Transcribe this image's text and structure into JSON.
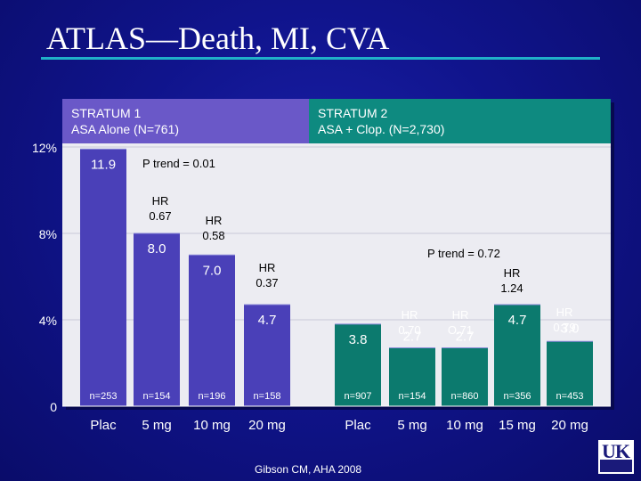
{
  "title": "ATLAS—Death, MI, CVA",
  "footer": "Gibson CM, AHA 2008",
  "logo": {
    "text": "UK"
  },
  "colors": {
    "stratum1_bar": "#4a40b8",
    "stratum2_bar": "#0c7a6e",
    "stratum1_header": "#6a58c8",
    "stratum2_header": "#0e8a80",
    "plot_bg": "#ececf2",
    "accent": "#20b0c8"
  },
  "chart_data": {
    "type": "bar",
    "title": "ATLAS—Death, MI, CVA",
    "ylim": [
      0,
      12
    ],
    "yticks": [
      {
        "value": 0,
        "label": "0"
      },
      {
        "value": 4,
        "label": "4%"
      },
      {
        "value": 8,
        "label": "8%"
      },
      {
        "value": 12,
        "label": "12%"
      }
    ],
    "grid": false,
    "groups": [
      {
        "name": "STRATUM 1",
        "subtitle": "ASA Alone (N=761)",
        "trend": "P trend = 0.01",
        "bars": [
          {
            "category": "Plac",
            "value": 11.9,
            "label": "11.9",
            "n": "n=253"
          },
          {
            "category": "5 mg",
            "value": 8.0,
            "label": "8.0",
            "n": "n=154",
            "hr": [
              "HR",
              "0.67"
            ]
          },
          {
            "category": "10 mg",
            "value": 7.0,
            "label": "7.0",
            "n": "n=196",
            "hr": [
              "HR",
              "0.58"
            ]
          },
          {
            "category": "20 mg",
            "value": 4.7,
            "label": "4.7",
            "n": "n=158",
            "hr": [
              "HR",
              "0.37"
            ]
          }
        ]
      },
      {
        "name": "STRATUM 2",
        "subtitle": "ASA + Clop. (N=2,730)",
        "trend": "P trend = 0.72",
        "bars": [
          {
            "category": "Plac",
            "value": 3.8,
            "label": "3.8",
            "n": "n=907"
          },
          {
            "category": "5 mg",
            "value": 2.7,
            "label": "2.7",
            "n": "n=154",
            "hr": [
              "HR",
              "0.70"
            ]
          },
          {
            "category": "10 mg",
            "value": 2.7,
            "label": "2.7",
            "n": "n=860",
            "hr": [
              "HR",
              "O.71"
            ]
          },
          {
            "category": "15 mg",
            "value": 4.7,
            "label": "4.7",
            "n": "n=356",
            "hr": [
              "HR",
              "1.24"
            ]
          },
          {
            "category": "20 mg",
            "value": 3.0,
            "label": "3.0",
            "n": "n=453",
            "hr": [
              "HR",
              "0.79"
            ]
          }
        ]
      }
    ]
  }
}
